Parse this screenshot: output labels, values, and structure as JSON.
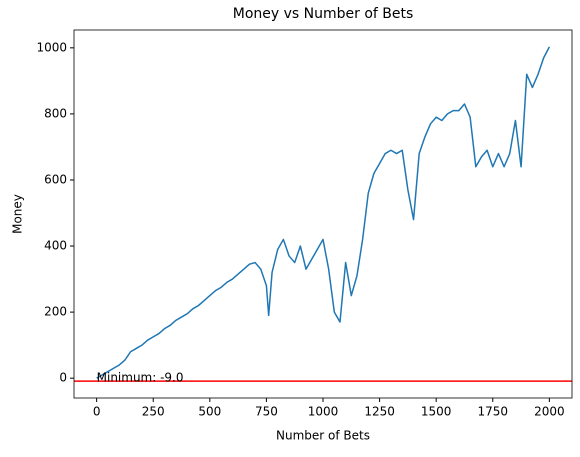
{
  "chart_data": {
    "type": "line",
    "title": "Money vs Number of Bets",
    "xlabel": "Number of Bets",
    "ylabel": "Money",
    "x": [
      0,
      25,
      50,
      75,
      100,
      125,
      150,
      175,
      200,
      225,
      250,
      275,
      300,
      325,
      350,
      375,
      400,
      425,
      450,
      475,
      500,
      525,
      550,
      575,
      600,
      625,
      650,
      675,
      700,
      725,
      750,
      760,
      775,
      800,
      825,
      850,
      875,
      900,
      925,
      950,
      975,
      1000,
      1025,
      1050,
      1075,
      1100,
      1125,
      1150,
      1175,
      1200,
      1225,
      1250,
      1275,
      1300,
      1325,
      1350,
      1375,
      1400,
      1425,
      1450,
      1475,
      1500,
      1525,
      1550,
      1575,
      1600,
      1625,
      1650,
      1675,
      1700,
      1725,
      1750,
      1775,
      1800,
      1825,
      1850,
      1875,
      1900,
      1925,
      1950,
      1975,
      2000
    ],
    "values": [
      0,
      10,
      20,
      30,
      40,
      55,
      80,
      90,
      100,
      115,
      125,
      135,
      150,
      160,
      175,
      185,
      195,
      210,
      220,
      235,
      250,
      265,
      275,
      290,
      300,
      315,
      330,
      345,
      350,
      330,
      280,
      190,
      320,
      390,
      420,
      370,
      350,
      400,
      330,
      360,
      390,
      420,
      330,
      200,
      170,
      350,
      250,
      310,
      420,
      560,
      620,
      650,
      680,
      690,
      680,
      690,
      570,
      480,
      680,
      730,
      770,
      790,
      780,
      800,
      810,
      810,
      830,
      790,
      640,
      670,
      690,
      640,
      680,
      640,
      680,
      780,
      640,
      920,
      880,
      920,
      970,
      1003
    ],
    "color": "#1f77b4",
    "hline": {
      "value": -9,
      "color": "#ff0000"
    },
    "annotation": {
      "text": "Minimum: -9.0",
      "x": 0,
      "y": -9
    },
    "xlim": [
      -100,
      2100
    ],
    "xticks": [
      0,
      250,
      500,
      750,
      1000,
      1250,
      1500,
      1750,
      2000
    ],
    "ylim": [
      -60,
      1054
    ],
    "yticks": [
      0,
      200,
      400,
      600,
      800,
      1000
    ],
    "grid": false
  }
}
